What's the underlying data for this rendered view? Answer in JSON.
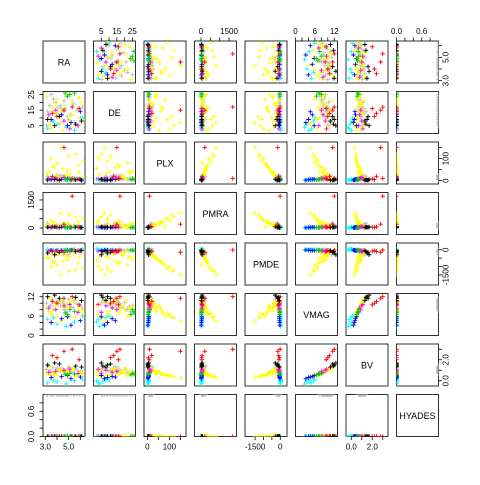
{
  "chart_data": {
    "type": "scatter",
    "subtype": "scatterplot-matrix",
    "variables": [
      "RA",
      "DE",
      "PLX",
      "PMRA",
      "PMDE",
      "VMAG",
      "BV",
      "HYADES"
    ],
    "ranges": {
      "RA": [
        2.8,
        6.4
      ],
      "DE": [
        0,
        27
      ],
      "PLX": [
        -15,
        175
      ],
      "PMRA": [
        -350,
        1900
      ],
      "PMDE": [
        -2100,
        400
      ],
      "VMAG": [
        0,
        13
      ],
      "BV": [
        -0.5,
        3.5
      ],
      "HYADES": [
        0,
        1
      ]
    },
    "ticks": {
      "RA": {
        "values": [
          3.0,
          4.0,
          5.0,
          6.0
        ],
        "labels": [
          "3.0",
          "",
          "5.0",
          ""
        ]
      },
      "DE": {
        "values": [
          5,
          10,
          15,
          20,
          25
        ],
        "labels": [
          "5",
          "",
          "15",
          "",
          "25"
        ]
      },
      "PLX": {
        "values": [
          0,
          50,
          100,
          150
        ],
        "labels": [
          "0",
          "",
          "100",
          ""
        ]
      },
      "PMRA": {
        "values": [
          0,
          500,
          1000,
          1500
        ],
        "labels": [
          "0",
          "",
          "",
          "1500"
        ]
      },
      "PMDE": {
        "values": [
          -1500,
          -1000,
          -500,
          0
        ],
        "labels": [
          "-1500",
          "",
          "",
          "0"
        ]
      },
      "VMAG": {
        "values": [
          0,
          2,
          4,
          6,
          8,
          10,
          12
        ],
        "labels": [
          "0",
          "",
          "",
          "6",
          "",
          "",
          "12"
        ]
      },
      "BV": {
        "values": [
          0,
          1,
          2,
          3
        ],
        "labels": [
          "0.0",
          "",
          "2.0",
          ""
        ]
      },
      "HYADES": {
        "values": [
          0,
          0.2,
          0.4,
          0.6,
          0.8
        ],
        "labels": [
          "0.0",
          "",
          "",
          "0.6",
          ""
        ]
      }
    },
    "tick_placement": {
      "top": [
        "DE",
        "PMRA",
        "VMAG",
        "HYADES"
      ],
      "bottom": [
        "RA",
        "PLX",
        "PMDE",
        "BV"
      ],
      "left": [
        "DE",
        "PMRA",
        "VMAG",
        "HYADES"
      ],
      "right": [
        "RA",
        "PLX",
        "PMDE",
        "BV"
      ]
    },
    "marker": "+",
    "colors": {
      "gray": "#bebebe",
      "yellow": "#ffff00",
      "cyan": "#00ffff",
      "magenta": "#ff00ff",
      "blue": "#0000ff",
      "red": "#ff0000",
      "green": "#00cd00",
      "black": "#000000"
    },
    "groups": [
      {
        "color": "gray",
        "points": [
          [
            3.4,
            18,
            8,
            40,
            -20,
            9.2,
            0.9,
            1
          ],
          [
            4.4,
            16,
            12,
            110,
            -30,
            10.5,
            1.2,
            1
          ],
          [
            4.6,
            21,
            7,
            80,
            -50,
            8.0,
            0.8,
            1
          ],
          [
            5.2,
            12,
            6,
            60,
            -10,
            8.8,
            0.9,
            1
          ],
          [
            3.6,
            8,
            15,
            150,
            -120,
            11.0,
            1.3,
            1
          ],
          [
            4.8,
            24,
            9,
            20,
            -40,
            7.5,
            0.7,
            1
          ],
          [
            5.7,
            15,
            10,
            90,
            -60,
            9.8,
            1.0,
            1
          ],
          [
            3.9,
            20,
            11,
            130,
            -80,
            10.2,
            1.1,
            1
          ],
          [
            4.2,
            6,
            14,
            70,
            -150,
            10.8,
            1.2,
            1
          ],
          [
            5.4,
            19,
            5,
            100,
            -30,
            8.6,
            0.8,
            1
          ],
          [
            6.0,
            10,
            8,
            40,
            -90,
            9.4,
            0.9,
            1
          ],
          [
            3.2,
            14,
            20,
            250,
            -200,
            11.6,
            1.4,
            1
          ],
          [
            4.1,
            17,
            22,
            110,
            -25,
            9.9,
            1.0,
            1
          ],
          [
            4.5,
            15,
            21,
            105,
            -28,
            10.3,
            1.1,
            1
          ],
          [
            4.3,
            18,
            23,
            100,
            -22,
            9.1,
            0.9,
            1
          ],
          [
            4.7,
            16,
            19,
            95,
            -20,
            8.7,
            0.8,
            1
          ],
          [
            4.0,
            13,
            24,
            120,
            -35,
            10.6,
            1.2,
            1
          ],
          [
            4.6,
            14,
            20,
            115,
            -30,
            9.5,
            0.95,
            1
          ],
          [
            5.0,
            9,
            12,
            200,
            -300,
            11.2,
            1.3,
            1
          ],
          [
            3.7,
            22,
            6,
            30,
            -10,
            8.2,
            0.75,
            1
          ],
          [
            5.9,
            23,
            8,
            50,
            -70,
            9.0,
            0.85,
            1
          ],
          [
            3.1,
            5,
            9,
            80,
            -60,
            10.0,
            1.05,
            1
          ],
          [
            5.5,
            7,
            13,
            140,
            -110,
            10.9,
            1.2,
            1
          ],
          [
            4.9,
            11,
            16,
            60,
            -40,
            9.6,
            1.0,
            1
          ],
          [
            6.2,
            17,
            7,
            20,
            -15,
            8.4,
            0.7,
            1
          ],
          [
            3.5,
            25,
            10,
            70,
            -45,
            9.3,
            0.9,
            1
          ]
        ]
      },
      {
        "color": "yellow",
        "points": [
          [
            3.3,
            10,
            40,
            200,
            -500,
            7.5,
            0.6,
            0
          ],
          [
            4.0,
            22,
            80,
            50,
            -900,
            6.0,
            0.5,
            0
          ],
          [
            5.6,
            5,
            120,
            600,
            -1200,
            5.5,
            0.4,
            0
          ],
          [
            4.6,
            18,
            20,
            100,
            -300,
            9.0,
            0.9,
            0
          ],
          [
            3.8,
            14,
            60,
            300,
            -700,
            8.2,
            0.7,
            0
          ],
          [
            5.1,
            8,
            30,
            150,
            -400,
            10.0,
            1.0,
            0
          ],
          [
            6.1,
            20,
            15,
            80,
            -200,
            7.8,
            0.8,
            0
          ],
          [
            3.5,
            3,
            100,
            400,
            -1000,
            6.5,
            0.5,
            0
          ],
          [
            4.9,
            25,
            45,
            250,
            -600,
            8.8,
            0.85,
            0
          ],
          [
            5.4,
            12,
            10,
            60,
            -150,
            10.5,
            1.1,
            0
          ],
          [
            4.3,
            7,
            150,
            800,
            -1500,
            4.5,
            0.3,
            0
          ],
          [
            3.9,
            19,
            25,
            120,
            -350,
            9.5,
            0.95,
            0
          ],
          [
            5.8,
            16,
            70,
            350,
            -800,
            7.0,
            0.6,
            0
          ],
          [
            3.1,
            24,
            35,
            180,
            -450,
            8.5,
            0.75,
            0
          ],
          [
            4.5,
            2,
            55,
            220,
            -650,
            9.2,
            0.9,
            0
          ],
          [
            5.3,
            21,
            5,
            30,
            -100,
            11.0,
            1.2,
            0
          ],
          [
            6.3,
            9,
            90,
            500,
            -1100,
            6.8,
            0.55,
            0
          ],
          [
            4.1,
            13,
            18,
            90,
            -250,
            10.2,
            1.0,
            0
          ],
          [
            3.6,
            17,
            65,
            320,
            -750,
            7.6,
            0.65,
            0
          ],
          [
            4.8,
            4,
            28,
            140,
            -380,
            9.8,
            1.0,
            0
          ],
          [
            5.0,
            11,
            110,
            700,
            -1300,
            5.8,
            0.45,
            0
          ],
          [
            3.4,
            6,
            12,
            70,
            -180,
            11.5,
            1.3,
            0
          ],
          [
            5.9,
            23,
            38,
            160,
            -420,
            8.4,
            0.8,
            0
          ],
          [
            4.4,
            15,
            8,
            40,
            -120,
            10.8,
            1.15,
            0
          ]
        ]
      },
      {
        "color": "cyan",
        "points": [
          [
            3.2,
            3,
            5,
            30,
            20,
            5.0,
            -0.2,
            0
          ],
          [
            4.0,
            6,
            3,
            10,
            10,
            3.5,
            -0.1,
            0
          ],
          [
            5.5,
            2,
            8,
            60,
            30,
            4.2,
            0.0,
            0
          ],
          [
            6.2,
            10,
            4,
            20,
            15,
            6.0,
            0.1,
            0
          ],
          [
            4.8,
            4,
            2,
            5,
            5,
            2.8,
            -0.3,
            0
          ],
          [
            3.7,
            8,
            6,
            40,
            25,
            5.6,
            0.05,
            0
          ]
        ]
      },
      {
        "color": "magenta",
        "points": [
          [
            3.3,
            12,
            10,
            50,
            -80,
            8.5,
            0.8,
            0
          ],
          [
            4.6,
            8,
            15,
            80,
            -120,
            9.2,
            1.0,
            0
          ],
          [
            5.8,
            5,
            6,
            30,
            -40,
            7.2,
            0.7,
            0
          ],
          [
            3.9,
            15,
            12,
            60,
            -60,
            8.0,
            0.9,
            0
          ],
          [
            5.1,
            3,
            9,
            45,
            -90,
            9.6,
            1.1,
            0
          ]
        ]
      },
      {
        "color": "blue",
        "points": [
          [
            3.5,
            9,
            4,
            20,
            -30,
            4.0,
            0.3,
            0
          ],
          [
            4.4,
            12,
            6,
            40,
            -50,
            5.2,
            0.4,
            0
          ],
          [
            5.2,
            7,
            3,
            15,
            -20,
            3.2,
            0.2,
            0
          ],
          [
            6.0,
            14,
            5,
            25,
            -40,
            4.6,
            0.35,
            0
          ],
          [
            4.9,
            5,
            7,
            35,
            -60,
            5.8,
            0.5,
            0
          ]
        ]
      },
      {
        "color": "red",
        "points": [
          [
            3.6,
            13,
            20,
            60,
            -100,
            10.5,
            2.4,
            0
          ],
          [
            4.6,
            15,
            150,
            200,
            -150,
            11.5,
            2.8,
            0
          ],
          [
            5.3,
            17,
            10,
            1700,
            -10,
            12.0,
            3.0,
            0
          ],
          [
            4.0,
            11,
            5,
            30,
            -50,
            10.0,
            2.2,
            0
          ],
          [
            5.9,
            16,
            8,
            40,
            -80,
            9.5,
            2.0,
            0
          ]
        ]
      },
      {
        "color": "green",
        "points": [
          [
            4.7,
            26,
            5,
            20,
            -20,
            7.0,
            0.6,
            0
          ],
          [
            5.1,
            25,
            8,
            30,
            -30,
            8.0,
            0.7,
            0
          ],
          [
            5.5,
            26,
            6,
            25,
            -25,
            7.5,
            0.65,
            0
          ],
          [
            4.9,
            24,
            4,
            15,
            -15,
            6.5,
            0.55,
            0
          ]
        ]
      },
      {
        "color": "black",
        "points": [
          [
            3.2,
            9,
            3,
            40,
            -200,
            12.0,
            1.5,
            0
          ],
          [
            4.2,
            11,
            2,
            30,
            -150,
            11.5,
            1.6,
            0
          ],
          [
            5.6,
            6,
            4,
            50,
            -100,
            11.8,
            1.4,
            0
          ],
          [
            3.8,
            5,
            6,
            60,
            -300,
            12.5,
            1.7,
            0
          ],
          [
            6.1,
            8,
            2,
            20,
            -50,
            10.8,
            1.3,
            0
          ]
        ]
      }
    ]
  }
}
